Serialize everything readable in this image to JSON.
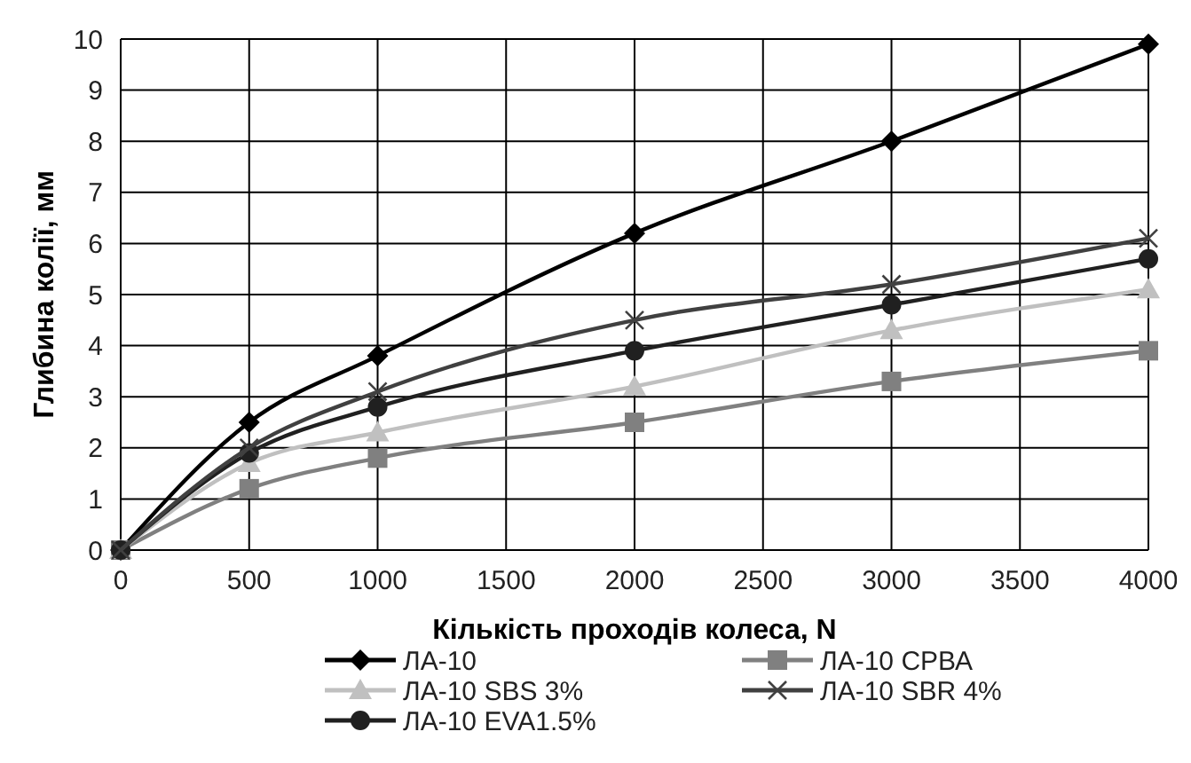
{
  "chart_data": {
    "type": "line",
    "xlabel": "Кількість проходів колеса, N",
    "ylabel": "Глибина колії, мм",
    "x": [
      0,
      500,
      1000,
      2000,
      3000,
      4000
    ],
    "series": [
      {
        "name": "ЛА-10",
        "color": "#000000",
        "marker": "diamond",
        "values": [
          0,
          2.5,
          3.8,
          6.2,
          8.0,
          9.9
        ]
      },
      {
        "name": "ЛА-10 СРВА",
        "color": "#808080",
        "marker": "square",
        "values": [
          0,
          1.2,
          1.8,
          2.5,
          3.3,
          3.9
        ]
      },
      {
        "name": "ЛА-10 SBS 3%",
        "color": "#c0c0c0",
        "marker": "triangle",
        "values": [
          0,
          1.7,
          2.3,
          3.2,
          4.3,
          5.1
        ]
      },
      {
        "name": "ЛА-10 SBR 4%",
        "color": "#404040",
        "marker": "cross",
        "values": [
          0,
          2.0,
          3.1,
          4.5,
          5.2,
          6.1
        ]
      },
      {
        "name": "ЛА-10 EVA1.5%",
        "color": "#202020",
        "marker": "circle",
        "values": [
          0,
          1.9,
          2.8,
          3.9,
          4.8,
          5.7
        ]
      }
    ],
    "xlim": [
      0,
      4000
    ],
    "xticks": [
      0,
      500,
      1000,
      1500,
      2000,
      2500,
      3000,
      3500,
      4000
    ],
    "ylim": [
      0,
      10
    ],
    "yticks": [
      0,
      1,
      2,
      3,
      4,
      5,
      6,
      7,
      8,
      9,
      10
    ],
    "grid": true,
    "legend": "bottom",
    "line_style": "solid"
  }
}
